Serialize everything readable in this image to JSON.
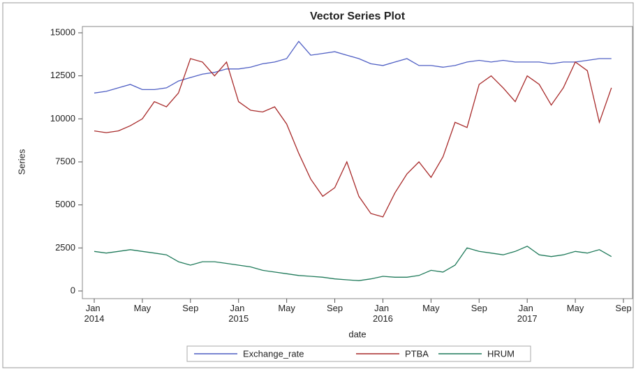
{
  "chart_data": {
    "type": "line",
    "title": "Vector Series Plot",
    "x_label": "date",
    "y_label": "Series",
    "x": [
      "2014-01",
      "2014-02",
      "2014-03",
      "2014-04",
      "2014-05",
      "2014-06",
      "2014-07",
      "2014-08",
      "2014-09",
      "2014-10",
      "2014-11",
      "2014-12",
      "2015-01",
      "2015-02",
      "2015-03",
      "2015-04",
      "2015-05",
      "2015-06",
      "2015-07",
      "2015-08",
      "2015-09",
      "2015-10",
      "2015-11",
      "2015-12",
      "2016-01",
      "2016-02",
      "2016-03",
      "2016-04",
      "2016-05",
      "2016-06",
      "2016-07",
      "2016-08",
      "2016-09",
      "2016-10",
      "2016-11",
      "2016-12",
      "2017-01",
      "2017-02",
      "2017-03",
      "2017-04",
      "2017-05",
      "2017-06",
      "2017-07",
      "2017-08"
    ],
    "series": [
      {
        "name": "Exchange_rate",
        "color": "#4f5fc4",
        "values": [
          11500,
          11600,
          11800,
          12000,
          11700,
          11700,
          11800,
          12200,
          12400,
          12600,
          12700,
          12900,
          12900,
          13000,
          13200,
          13300,
          13500,
          14500,
          13700,
          13800,
          13900,
          13700,
          13500,
          13200,
          13100,
          13300,
          13500,
          13100,
          13100,
          13000,
          13100,
          13300,
          13400,
          13300,
          13400,
          13300,
          13300,
          13300,
          13200,
          13300,
          13300,
          13400,
          13500,
          13500
        ]
      },
      {
        "name": "PTBA",
        "color": "#a82a2a",
        "values": [
          9300,
          9200,
          9300,
          9600,
          10000,
          11000,
          10700,
          11500,
          13500,
          13300,
          12500,
          13300,
          11000,
          10500,
          10400,
          10700,
          9700,
          8000,
          6500,
          5500,
          6000,
          7500,
          5500,
          4500,
          4300,
          5700,
          6800,
          7500,
          6600,
          7800,
          9800,
          9500,
          12000,
          12500,
          11800,
          11000,
          12500,
          12000,
          10800,
          11800,
          13300,
          12800,
          9800,
          11800
        ]
      },
      {
        "name": "HRUM",
        "color": "#1f7a5a",
        "values": [
          2300,
          2200,
          2300,
          2400,
          2300,
          2200,
          2100,
          1700,
          1500,
          1700,
          1700,
          1600,
          1500,
          1400,
          1200,
          1100,
          1000,
          900,
          850,
          800,
          700,
          650,
          600,
          700,
          850,
          800,
          800,
          900,
          1200,
          1100,
          1500,
          2500,
          2300,
          2200,
          2100,
          2300,
          2600,
          2100,
          2000,
          2100,
          2300,
          2200,
          2400,
          2000
        ]
      }
    ],
    "xlim": [
      "2014-01",
      "2017-09"
    ],
    "xticks": [
      {
        "value": "2014-01",
        "label": "Jan 2014"
      },
      {
        "value": "2014-05",
        "label": "May"
      },
      {
        "value": "2014-09",
        "label": "Sep"
      },
      {
        "value": "2015-01",
        "label": "Jan 2015"
      },
      {
        "value": "2015-05",
        "label": "May"
      },
      {
        "value": "2015-09",
        "label": "Sep"
      },
      {
        "value": "2016-01",
        "label": "Jan 2016"
      },
      {
        "value": "2016-05",
        "label": "May"
      },
      {
        "value": "2016-09",
        "label": "Sep"
      },
      {
        "value": "2017-01",
        "label": "Jan 2017"
      },
      {
        "value": "2017-05",
        "label": "May"
      },
      {
        "value": "2017-09",
        "label": "Sep"
      }
    ],
    "ylim": [
      0,
      15000
    ],
    "yticks": [
      0,
      2500,
      5000,
      7500,
      10000,
      12500,
      15000
    ],
    "grid": false,
    "legend": "bottom"
  }
}
